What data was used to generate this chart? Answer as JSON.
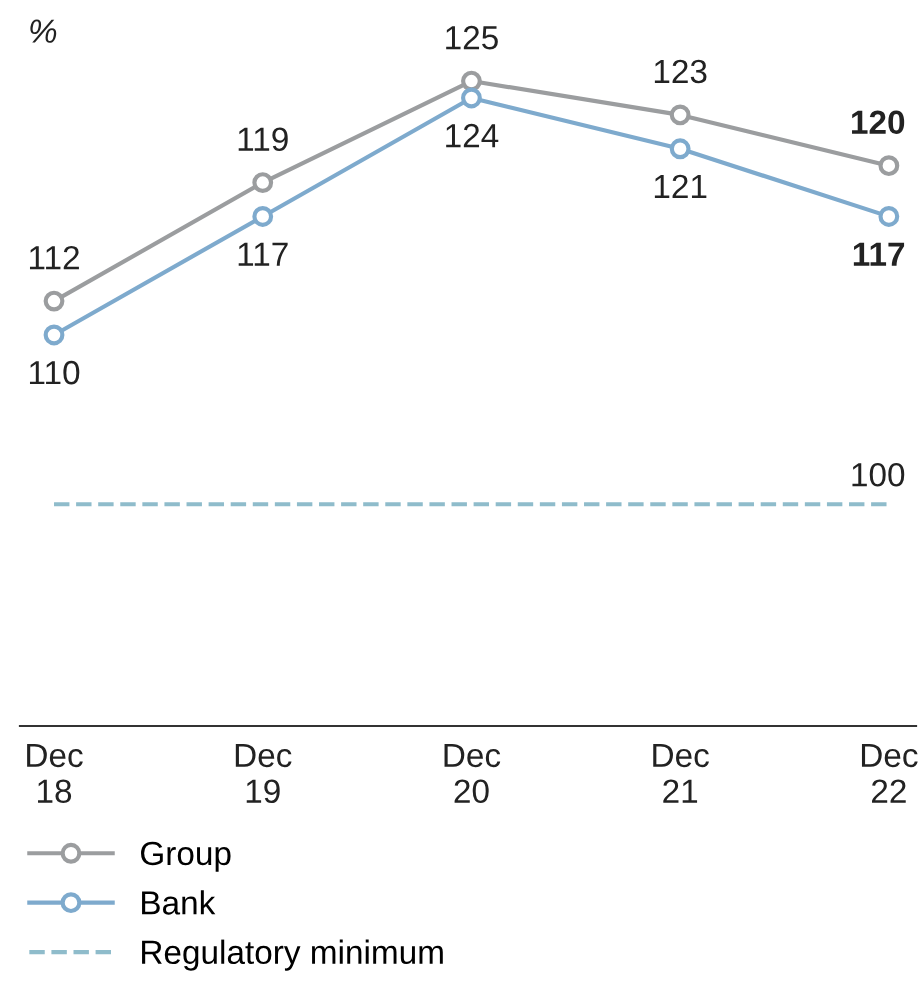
{
  "chart_data": {
    "type": "line",
    "ylabel": "%",
    "categories": [
      "Dec\n18",
      "Dec\n19",
      "Dec\n20",
      "Dec\n21",
      "Dec\n22"
    ],
    "series": [
      {
        "name": "Group",
        "color": "#9b9d9f",
        "values": [
          112,
          119,
          125,
          123,
          120
        ]
      },
      {
        "name": "Bank",
        "color": "#7eaacd",
        "values": [
          110,
          117,
          124,
          121,
          117
        ]
      },
      {
        "name": "Regulatory minimum",
        "color": "#8fbccb",
        "line_style": "dashed",
        "marker": "none",
        "values": [
          100,
          100,
          100,
          100,
          100
        ],
        "value_labels": [
          null,
          null,
          null,
          null,
          "100"
        ]
      }
    ],
    "tick_labels": "x",
    "data_labels": true,
    "marker": "circle",
    "line_style": "solid",
    "legend": "bottom",
    "grid": false
  }
}
